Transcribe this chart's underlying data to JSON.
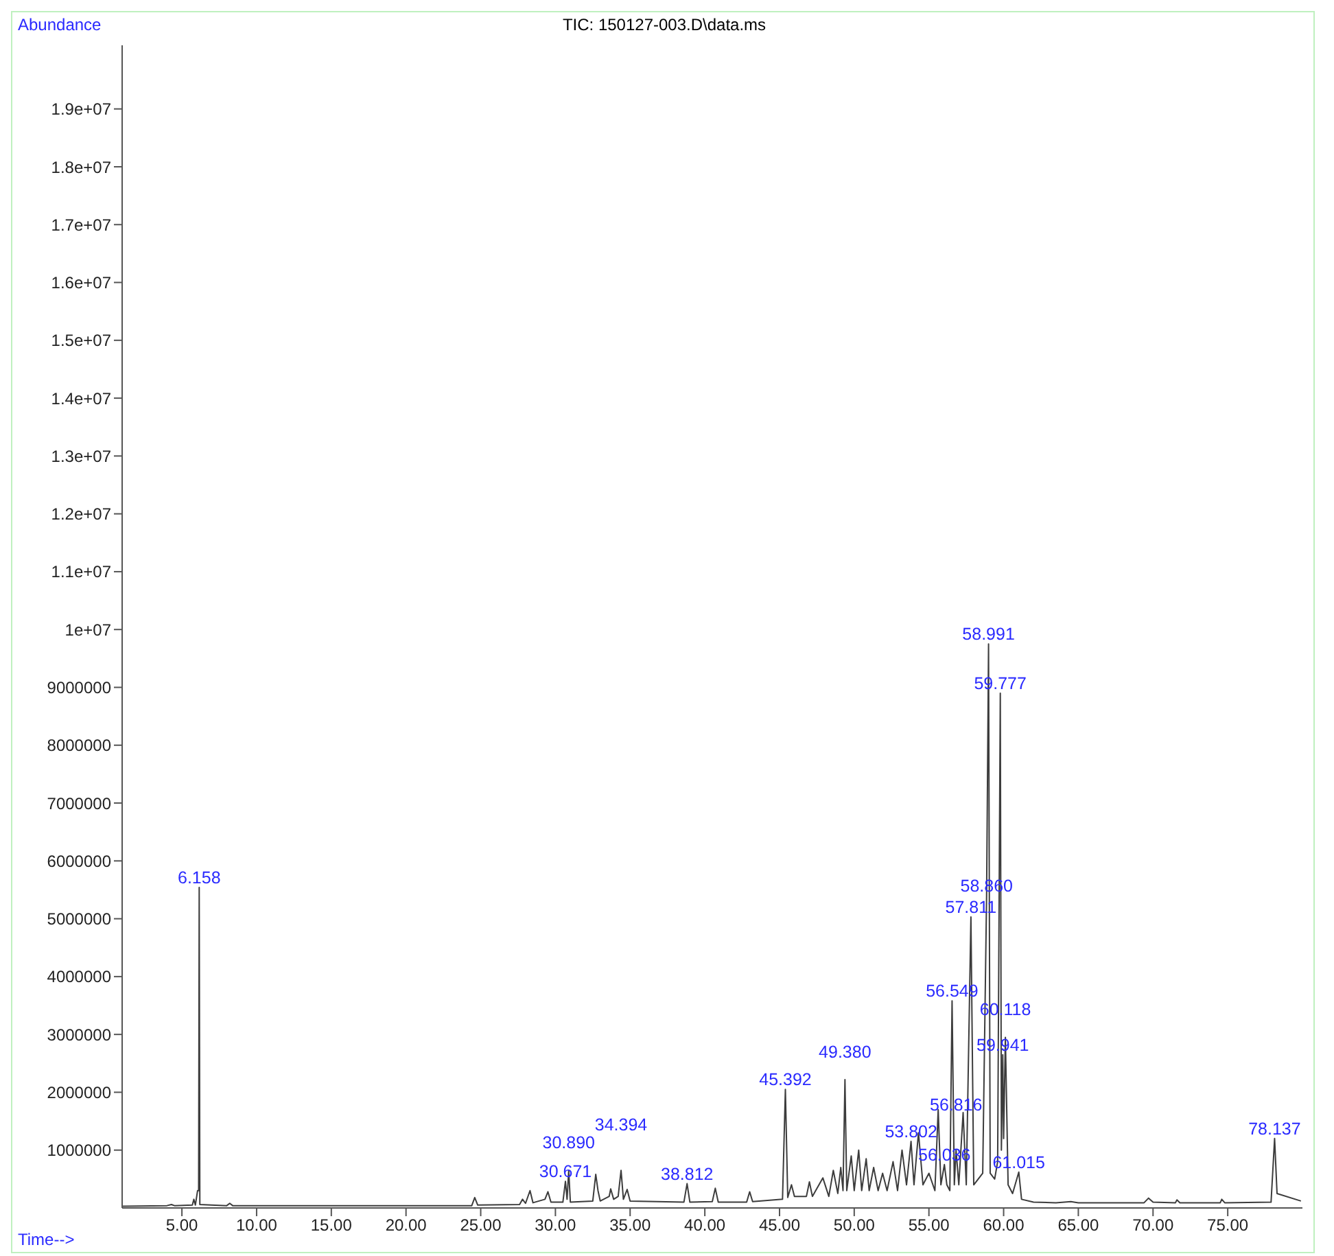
{
  "chart_data": {
    "type": "line",
    "title": "TIC: 150127-003.D\\data.ms",
    "xlabel": "Time-->",
    "ylabel": "Abundance",
    "color": "#3c3c3c",
    "marker": "none",
    "line_style": "solid",
    "xlim": [
      1,
      80
    ],
    "ylim": [
      0,
      20100000
    ],
    "xticks": [
      {
        "value": 5,
        "label": "5.00"
      },
      {
        "value": 10,
        "label": "10.00"
      },
      {
        "value": 15,
        "label": "15.00"
      },
      {
        "value": 20,
        "label": "20.00"
      },
      {
        "value": 25,
        "label": "25.00"
      },
      {
        "value": 30,
        "label": "30.00"
      },
      {
        "value": 35,
        "label": "35.00"
      },
      {
        "value": 40,
        "label": "40.00"
      },
      {
        "value": 45,
        "label": "45.00"
      },
      {
        "value": 50,
        "label": "50.00"
      },
      {
        "value": 55,
        "label": "55.00"
      },
      {
        "value": 60,
        "label": "60.00"
      },
      {
        "value": 65,
        "label": "65.00"
      },
      {
        "value": 70,
        "label": "70.00"
      },
      {
        "value": 75,
        "label": "75.00"
      }
    ],
    "yticks": [
      1000000,
      2000000,
      3000000,
      4000000,
      5000000,
      6000000,
      7000000,
      8000000,
      9000000,
      {
        "value": 10000000,
        "label": "1e+07"
      },
      {
        "value": 11000000,
        "label": "1.1e+07"
      },
      {
        "value": 12000000,
        "label": "1.2e+07"
      },
      {
        "value": 13000000,
        "label": "1.3e+07"
      },
      {
        "value": 14000000,
        "label": "1.4e+07"
      },
      {
        "value": 15000000,
        "label": "1.5e+07"
      },
      {
        "value": 16000000,
        "label": "1.6e+07"
      },
      {
        "value": 17000000,
        "label": "1.7e+07"
      },
      {
        "value": 18000000,
        "label": "1.8e+07"
      },
      {
        "value": 19000000,
        "label": "1.9e+07"
      }
    ],
    "x": [
      1,
      4.0,
      4.3,
      4.5,
      5.7,
      5.8,
      5.9,
      6.05,
      6.12,
      6.158,
      6.2,
      8.0,
      8.2,
      8.4,
      24.4,
      24.6,
      24.8,
      27.6,
      27.8,
      28.0,
      28.3,
      28.5,
      29.3,
      29.5,
      29.7,
      30.5,
      30.671,
      30.78,
      30.89,
      31.0,
      32.5,
      32.7,
      32.85,
      33.0,
      33.6,
      33.7,
      33.9,
      34.2,
      34.394,
      34.55,
      34.8,
      35.0,
      38.6,
      38.812,
      39.0,
      40.5,
      40.7,
      40.9,
      42.8,
      43.0,
      43.2,
      45.2,
      45.392,
      45.55,
      45.8,
      46.0,
      46.8,
      47.0,
      47.2,
      47.9,
      48.3,
      48.6,
      48.9,
      49.1,
      49.25,
      49.38,
      49.5,
      49.8,
      50.0,
      50.3,
      50.5,
      50.8,
      51.0,
      51.3,
      51.6,
      51.9,
      52.2,
      52.6,
      52.9,
      53.2,
      53.5,
      53.802,
      54.0,
      54.3,
      54.6,
      55.0,
      55.4,
      55.62,
      55.8,
      56.036,
      56.2,
      56.4,
      56.549,
      56.7,
      56.816,
      57.0,
      57.289,
      57.5,
      57.811,
      58.0,
      58.3,
      58.6,
      58.86,
      58.991,
      59.1,
      59.4,
      59.6,
      59.777,
      59.85,
      59.941,
      60.0,
      60.118,
      60.3,
      60.6,
      61.015,
      61.2,
      62,
      63.5,
      64.5,
      65,
      69.4,
      69.7,
      70,
      71.5,
      71.6,
      71.8,
      74.5,
      74.6,
      74.8,
      77.9,
      78.137,
      78.3,
      79.9
    ],
    "values": [
      30000,
      40000,
      60000,
      40000,
      50000,
      150000,
      50000,
      300000,
      300000,
      5540000,
      60000,
      40000,
      80000,
      40000,
      40000,
      180000,
      50000,
      60000,
      150000,
      80000,
      300000,
      90000,
      150000,
      280000,
      100000,
      100000,
      460000,
      150000,
      650000,
      100000,
      120000,
      580000,
      300000,
      120000,
      200000,
      330000,
      150000,
      200000,
      650000,
      150000,
      320000,
      120000,
      100000,
      420000,
      100000,
      110000,
      340000,
      100000,
      100000,
      280000,
      110000,
      150000,
      2050000,
      180000,
      400000,
      200000,
      200000,
      450000,
      200000,
      520000,
      200000,
      650000,
      250000,
      700000,
      300000,
      2220000,
      300000,
      900000,
      300000,
      1000000,
      300000,
      850000,
      300000,
      700000,
      300000,
      600000,
      300000,
      800000,
      300000,
      1000000,
      400000,
      1150000,
      400000,
      1300000,
      400000,
      600000,
      300000,
      1700000,
      400000,
      750000,
      400000,
      300000,
      3580000,
      400000,
      1000000,
      400000,
      1650000,
      400000,
      5030000,
      400000,
      500000,
      600000,
      5400000,
      9750000,
      600000,
      500000,
      800000,
      8900000,
      1000000,
      2650000,
      1200000,
      2950000,
      400000,
      250000,
      620000,
      150000,
      100000,
      90000,
      110000,
      90000,
      90000,
      170000,
      100000,
      90000,
      140000,
      90000,
      90000,
      150000,
      90000,
      100000,
      1200000,
      250000,
      120000
    ],
    "annotations": [
      {
        "text": "6.158",
        "x": 6.158,
        "y": 5540000
      },
      {
        "text": "30.671",
        "x": 30.671,
        "y": 460000
      },
      {
        "text": "30.890",
        "x": 30.89,
        "y": 650000
      },
      {
        "text": "34.394",
        "x": 34.394,
        "y": 650000
      },
      {
        "text": "38.812",
        "x": 38.812,
        "y": 420000
      },
      {
        "text": "45.392",
        "x": 45.392,
        "y": 2050000
      },
      {
        "text": "49.380",
        "x": 49.38,
        "y": 2220000
      },
      {
        "text": "53.802",
        "x": 53.802,
        "y": 1150000
      },
      {
        "text": "56.036",
        "x": 56.036,
        "y": 750000
      },
      {
        "text": "56.816",
        "x": 56.816,
        "y": 1000000
      },
      {
        "text": "56.549",
        "x": 56.549,
        "y": 3580000
      },
      {
        "text": "57.811",
        "x": 57.811,
        "y": 5030000
      },
      {
        "text": "58.860",
        "x": 58.86,
        "y": 5400000
      },
      {
        "text": "58.991",
        "x": 58.991,
        "y": 9750000
      },
      {
        "text": "59.777",
        "x": 59.777,
        "y": 8900000
      },
      {
        "text": "59.941",
        "x": 59.941,
        "y": 2650000
      },
      {
        "text": "60.118",
        "x": 60.118,
        "y": 2950000
      },
      {
        "text": "61.015",
        "x": 61.015,
        "y": 620000
      },
      {
        "text": "78.137",
        "x": 78.137,
        "y": 1200000
      }
    ]
  }
}
